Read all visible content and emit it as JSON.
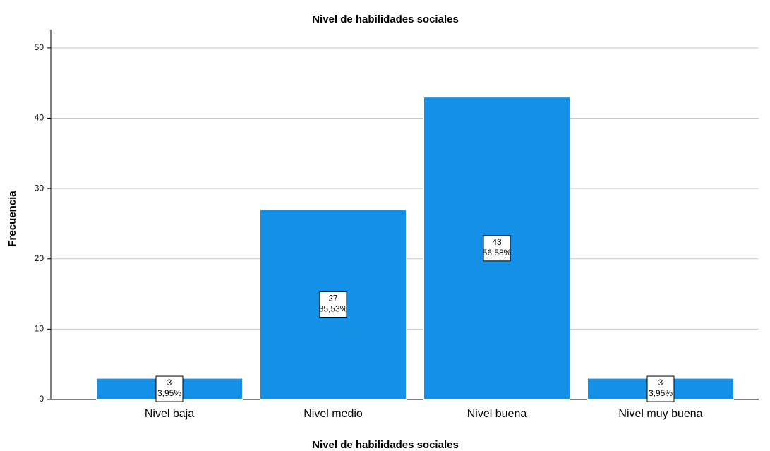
{
  "chart_data": {
    "type": "bar",
    "title": "Nivel de habilidades sociales",
    "x_label": "Nivel de habilidades sociales",
    "y_label": "Frecuencia",
    "categories": [
      "Nivel baja",
      "Nivel medio",
      "Nivel buena",
      "Nivel muy buena"
    ],
    "values": [
      3,
      27,
      43,
      3
    ],
    "percent_labels": [
      "3,95%",
      "35,53%",
      "56,58%",
      "3,95%"
    ],
    "color": "#1490e6",
    "ylim": [
      0,
      52.6
    ],
    "yticks": [
      0,
      10,
      20,
      30,
      40,
      50
    ],
    "grid": true
  }
}
